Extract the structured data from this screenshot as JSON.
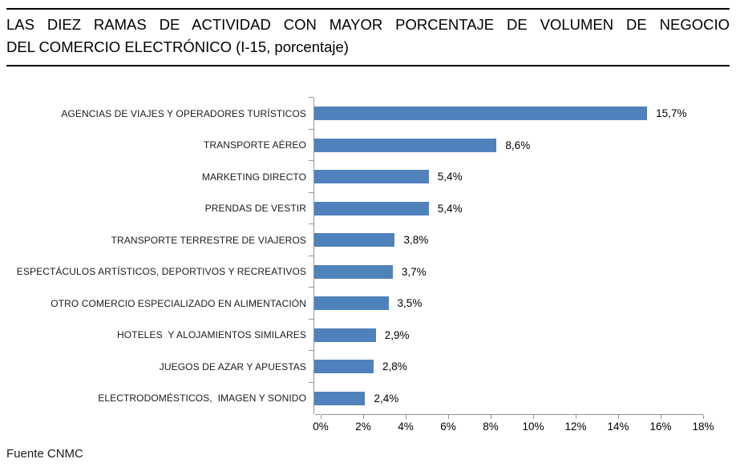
{
  "header": {
    "title_line1": "LAS DIEZ RAMAS DE ACTIVIDAD CON MAYOR PORCENTAJE DE VOLUMEN DE NEGOCIO",
    "title_line2": "DEL COMERCIO ELECTRÓNICO (I-15, porcentaje)"
  },
  "chart_data": {
    "type": "bar",
    "orientation": "horizontal",
    "title": "LAS DIEZ RAMAS DE ACTIVIDAD CON MAYOR PORCENTAJE DE VOLUMEN DE NEGOCIO DEL COMERCIO ELECTRÓNICO (I-15, porcentaje)",
    "categories": [
      "AGENCIAS DE VIAJES Y OPERADORES TURÍSTICOS",
      "TRANSPORTE AÉREO",
      "MARKETING DIRECTO",
      "PRENDAS DE VESTIR",
      "TRANSPORTE TERRESTRE DE VIAJEROS",
      "ESPECTÁCULOS ARTÍSTICOS, DEPORTIVOS Y RECREATIVOS",
      "OTRO COMERCIO ESPECIALIZADO EN ALIMENTACIÓN",
      "HOTELES  Y ALOJAMIENTOS SIMILARES",
      "JUEGOS DE AZAR Y APUESTAS",
      "ELECTRODOMÉSTICOS,  IMAGEN Y SONIDO"
    ],
    "values": [
      15.7,
      8.6,
      5.4,
      5.4,
      3.8,
      3.7,
      3.5,
      2.9,
      2.8,
      2.4
    ],
    "value_labels": [
      "15,7%",
      "8,6%",
      "5,4%",
      "5,4%",
      "3,8%",
      "3,7%",
      "3,5%",
      "2,9%",
      "2,8%",
      "2,4%"
    ],
    "xlabel": "",
    "ylabel": "",
    "xlim": [
      0,
      18
    ],
    "x_ticks": [
      "0%",
      "2%",
      "4%",
      "6%",
      "8%",
      "10%",
      "12%",
      "14%",
      "16%",
      "18%"
    ],
    "grid": false,
    "legend": "none",
    "bar_color": "#4f81bd",
    "axis_color": "#949494"
  },
  "footer": {
    "source": "Fuente CNMC"
  }
}
